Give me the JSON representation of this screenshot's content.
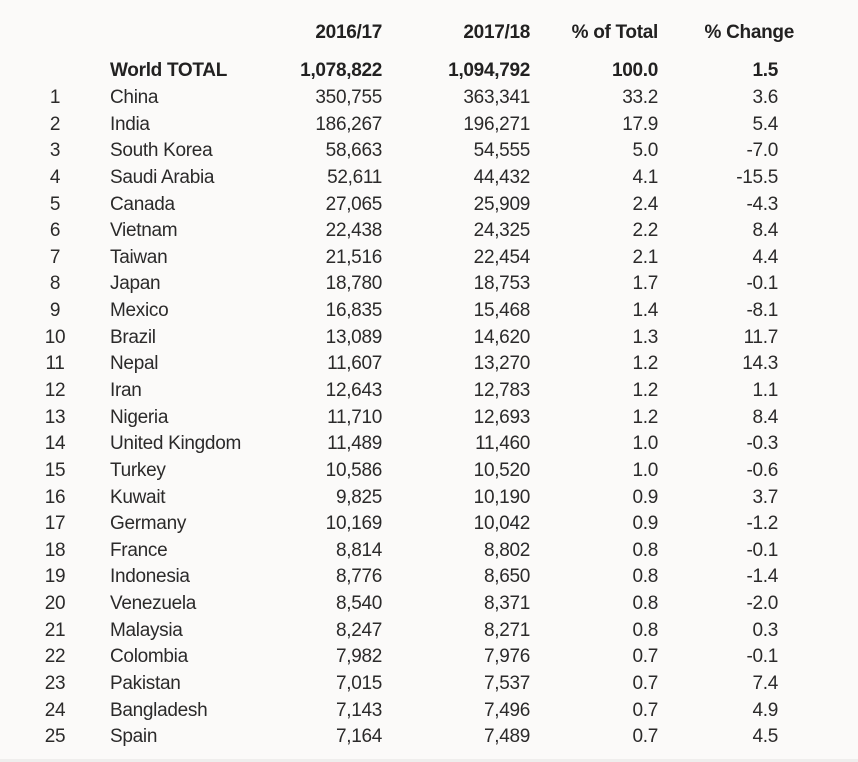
{
  "colors": {
    "background": "#fbfaf9",
    "text": "#2b2a2a",
    "bold_text": "#222121"
  },
  "chart_data": {
    "type": "table",
    "layout": {
      "grid": "off",
      "numeric_alignment": "right",
      "total_row_style": "bold",
      "header_style": "bold"
    },
    "headers": {
      "rank": "",
      "country": "",
      "col_2016_17": "2016/17",
      "col_2017_18": "2017/18",
      "col_pct_total": "% of Total",
      "col_pct_change": "% Change"
    },
    "total_row": {
      "rank": "",
      "country": "World TOTAL",
      "v1": "1,078,822",
      "v2": "1,094,792",
      "pct_total": "100.0",
      "pct_change": "1.5"
    },
    "rows": [
      {
        "rank": "1",
        "country": "China",
        "v1": "350,755",
        "v2": "363,341",
        "pct_total": "33.2",
        "pct_change": "3.6"
      },
      {
        "rank": "2",
        "country": "India",
        "v1": "186,267",
        "v2": "196,271",
        "pct_total": "17.9",
        "pct_change": "5.4"
      },
      {
        "rank": "3",
        "country": "South Korea",
        "v1": "58,663",
        "v2": "54,555",
        "pct_total": "5.0",
        "pct_change": "-7.0"
      },
      {
        "rank": "4",
        "country": "Saudi Arabia",
        "v1": "52,611",
        "v2": "44,432",
        "pct_total": "4.1",
        "pct_change": "-15.5"
      },
      {
        "rank": "5",
        "country": "Canada",
        "v1": "27,065",
        "v2": "25,909",
        "pct_total": "2.4",
        "pct_change": "-4.3"
      },
      {
        "rank": "6",
        "country": "Vietnam",
        "v1": "22,438",
        "v2": "24,325",
        "pct_total": "2.2",
        "pct_change": "8.4"
      },
      {
        "rank": "7",
        "country": "Taiwan",
        "v1": "21,516",
        "v2": "22,454",
        "pct_total": "2.1",
        "pct_change": "4.4"
      },
      {
        "rank": "8",
        "country": "Japan",
        "v1": "18,780",
        "v2": "18,753",
        "pct_total": "1.7",
        "pct_change": "-0.1"
      },
      {
        "rank": "9",
        "country": "Mexico",
        "v1": "16,835",
        "v2": "15,468",
        "pct_total": "1.4",
        "pct_change": "-8.1"
      },
      {
        "rank": "10",
        "country": "Brazil",
        "v1": "13,089",
        "v2": "14,620",
        "pct_total": "1.3",
        "pct_change": "11.7"
      },
      {
        "rank": "11",
        "country": "Nepal",
        "v1": "11,607",
        "v2": "13,270",
        "pct_total": "1.2",
        "pct_change": "14.3"
      },
      {
        "rank": "12",
        "country": "Iran",
        "v1": "12,643",
        "v2": "12,783",
        "pct_total": "1.2",
        "pct_change": "1.1"
      },
      {
        "rank": "13",
        "country": "Nigeria",
        "v1": "11,710",
        "v2": "12,693",
        "pct_total": "1.2",
        "pct_change": "8.4"
      },
      {
        "rank": "14",
        "country": "United Kingdom",
        "v1": "11,489",
        "v2": "11,460",
        "pct_total": "1.0",
        "pct_change": "-0.3"
      },
      {
        "rank": "15",
        "country": "Turkey",
        "v1": "10,586",
        "v2": "10,520",
        "pct_total": "1.0",
        "pct_change": "-0.6"
      },
      {
        "rank": "16",
        "country": "Kuwait",
        "v1": "9,825",
        "v2": "10,190",
        "pct_total": "0.9",
        "pct_change": "3.7"
      },
      {
        "rank": "17",
        "country": "Germany",
        "v1": "10,169",
        "v2": "10,042",
        "pct_total": "0.9",
        "pct_change": "-1.2"
      },
      {
        "rank": "18",
        "country": "France",
        "v1": "8,814",
        "v2": "8,802",
        "pct_total": "0.8",
        "pct_change": "-0.1"
      },
      {
        "rank": "19",
        "country": "Indonesia",
        "v1": "8,776",
        "v2": "8,650",
        "pct_total": "0.8",
        "pct_change": "-1.4"
      },
      {
        "rank": "20",
        "country": "Venezuela",
        "v1": "8,540",
        "v2": "8,371",
        "pct_total": "0.8",
        "pct_change": "-2.0"
      },
      {
        "rank": "21",
        "country": "Malaysia",
        "v1": "8,247",
        "v2": "8,271",
        "pct_total": "0.8",
        "pct_change": "0.3"
      },
      {
        "rank": "22",
        "country": "Colombia",
        "v1": "7,982",
        "v2": "7,976",
        "pct_total": "0.7",
        "pct_change": "-0.1"
      },
      {
        "rank": "23",
        "country": "Pakistan",
        "v1": "7,015",
        "v2": "7,537",
        "pct_total": "0.7",
        "pct_change": "7.4"
      },
      {
        "rank": "24",
        "country": "Bangladesh",
        "v1": "7,143",
        "v2": "7,496",
        "pct_total": "0.7",
        "pct_change": "4.9"
      },
      {
        "rank": "25",
        "country": "Spain",
        "v1": "7,164",
        "v2": "7,489",
        "pct_total": "0.7",
        "pct_change": "4.5"
      }
    ]
  }
}
